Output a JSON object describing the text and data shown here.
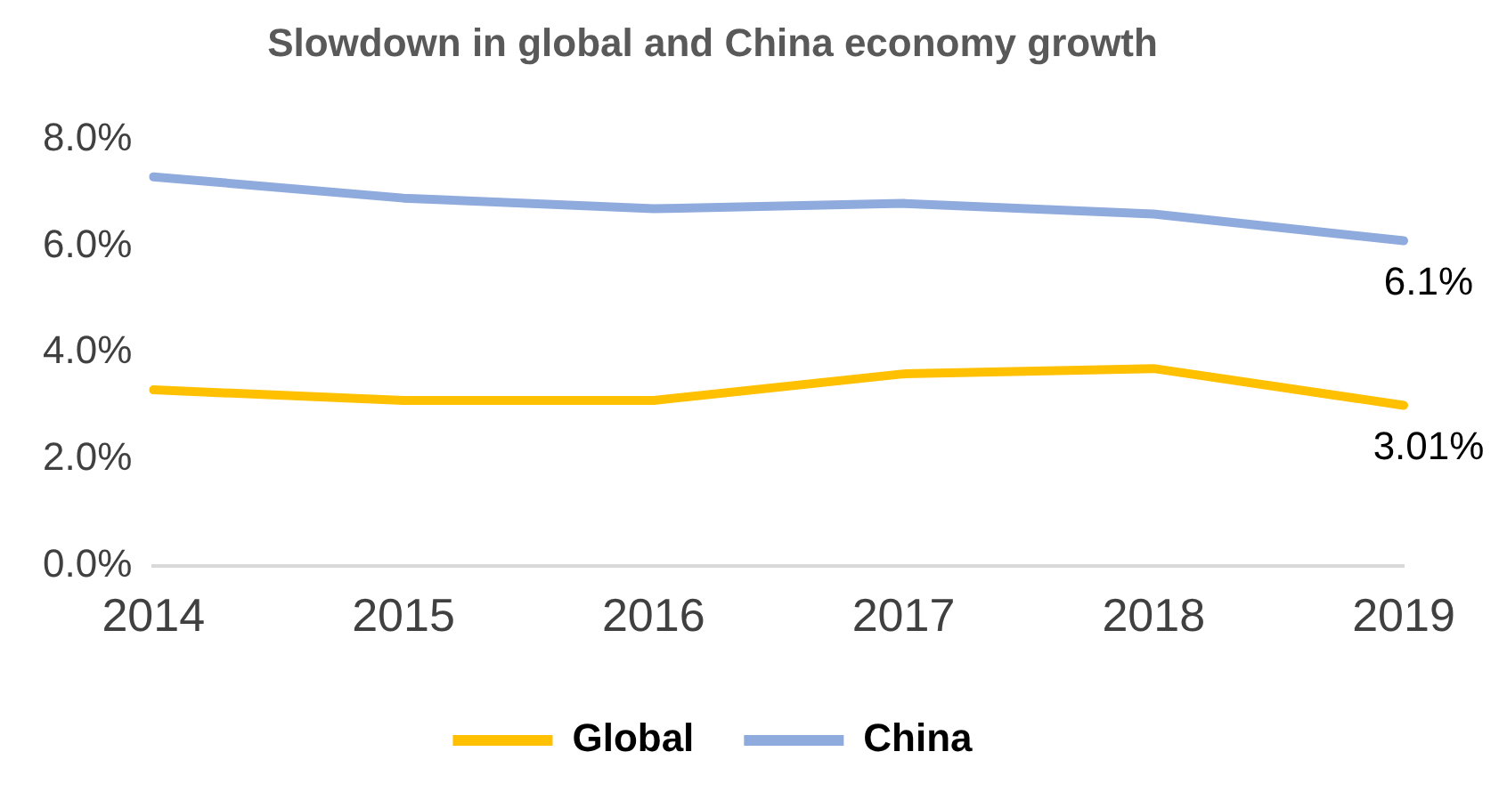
{
  "chart_data": {
    "type": "line",
    "title": "Slowdown in global and China economy growth",
    "categories": [
      "2014",
      "2015",
      "2016",
      "2017",
      "2018",
      "2019"
    ],
    "series": [
      {
        "name": "Global",
        "color": "#ffc000",
        "values": [
          3.3,
          3.1,
          3.1,
          3.6,
          3.7,
          3.01
        ],
        "value_labels": [
          null,
          null,
          null,
          null,
          null,
          "3.01%"
        ]
      },
      {
        "name": "China",
        "color": "#8faadc",
        "values": [
          7.3,
          6.9,
          6.7,
          6.8,
          6.6,
          6.1
        ],
        "value_labels": [
          null,
          null,
          null,
          null,
          null,
          "6.1%"
        ]
      }
    ],
    "ylim": [
      0,
      8
    ],
    "yticks": [
      {
        "value": 0,
        "label": "0.0%"
      },
      {
        "value": 2,
        "label": "2.0%"
      },
      {
        "value": 4,
        "label": "4.0%"
      },
      {
        "value": 6,
        "label": "6.0%"
      },
      {
        "value": 8,
        "label": "8.0%"
      }
    ],
    "grid": false,
    "legend": "bottom",
    "marker": "none",
    "line_style": "solid"
  }
}
